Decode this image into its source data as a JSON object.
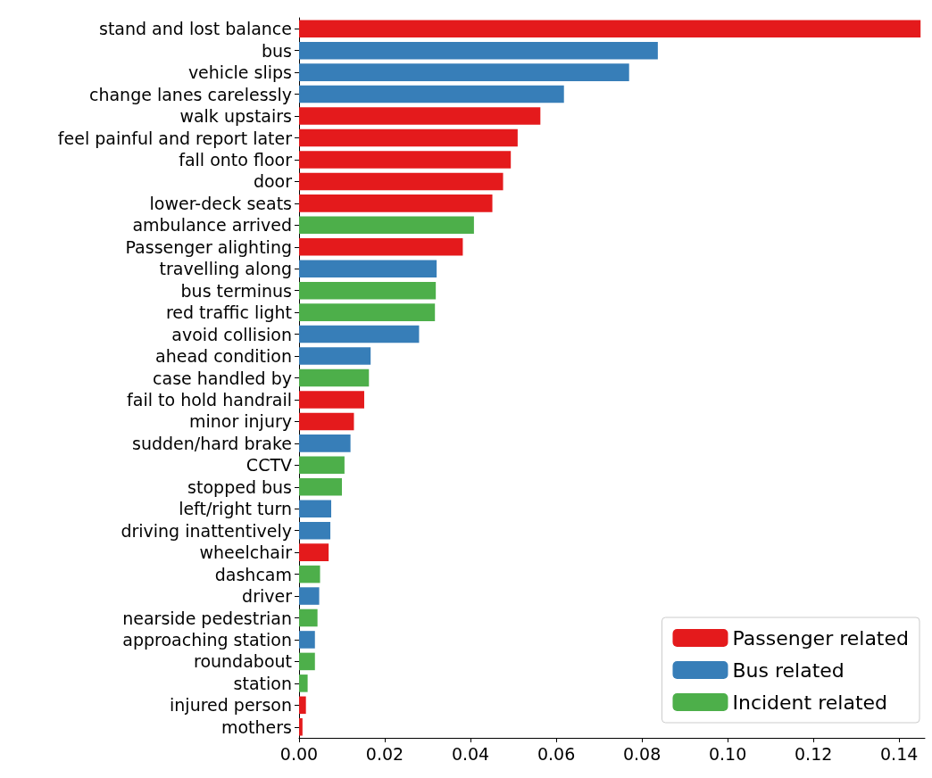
{
  "chart_data": {
    "type": "bar",
    "orientation": "horizontal",
    "stacked": true,
    "categories": [
      "stand and lost balance",
      "bus",
      "vehicle slips",
      "change lanes carelessly",
      "walk upstairs",
      "feel painful and report later",
      "fall onto floor",
      "door",
      "lower-deck seats",
      "ambulance arrived",
      "Passenger alighting",
      "travelling along",
      "bus terminus",
      "red traffic light",
      "avoid collision",
      "ahead condition",
      "case handled by",
      "fail to hold handrail",
      "minor injury",
      "sudden/hard brake",
      "CCTV",
      "stopped bus",
      "left/right turn",
      "driving inattentively",
      "wheelchair",
      "dashcam",
      "driver",
      "nearside pedestrian",
      "approaching station",
      "roundabout",
      "station",
      "injured person",
      "mothers"
    ],
    "series": [
      {
        "name": "Passenger related",
        "color": "#e41a1c",
        "values": [
          0.145,
          null,
          null,
          null,
          0.0563,
          0.051,
          0.0494,
          0.0476,
          0.0451,
          null,
          0.0382,
          null,
          null,
          null,
          null,
          null,
          null,
          0.0152,
          0.0128,
          null,
          null,
          null,
          null,
          null,
          0.0069,
          null,
          null,
          null,
          null,
          null,
          null,
          0.0016,
          0.0008
        ]
      },
      {
        "name": "Bus related",
        "color": "#377eb8",
        "values": [
          null,
          0.0837,
          0.077,
          0.0618,
          null,
          null,
          null,
          null,
          null,
          null,
          null,
          0.0321,
          null,
          null,
          0.028,
          0.0167,
          null,
          null,
          null,
          0.012,
          null,
          null,
          0.0075,
          0.0073,
          null,
          null,
          0.0047,
          null,
          0.0037,
          null,
          null,
          null,
          null
        ]
      },
      {
        "name": "Incident related",
        "color": "#4daf4a",
        "values": [
          null,
          null,
          null,
          null,
          null,
          null,
          null,
          null,
          null,
          0.0408,
          null,
          null,
          0.0319,
          0.0317,
          null,
          null,
          0.0163,
          null,
          null,
          null,
          0.0106,
          0.01,
          null,
          null,
          null,
          0.0049,
          null,
          0.0043,
          null,
          0.0037,
          0.002,
          null,
          null
        ]
      }
    ],
    "xlim": [
      0,
      0.146
    ],
    "xticks": [
      {
        "value": 0,
        "label": "0.00"
      },
      {
        "value": 0.02,
        "label": "0.02"
      },
      {
        "value": 0.04,
        "label": "0.04"
      },
      {
        "value": 0.06,
        "label": "0.06"
      },
      {
        "value": 0.08,
        "label": "0.08"
      },
      {
        "value": 0.1,
        "label": "0.10"
      },
      {
        "value": 0.12,
        "label": "0.12"
      },
      {
        "value": 0.14,
        "label": "0.14"
      }
    ],
    "grid": false,
    "legend": "bottom right"
  }
}
